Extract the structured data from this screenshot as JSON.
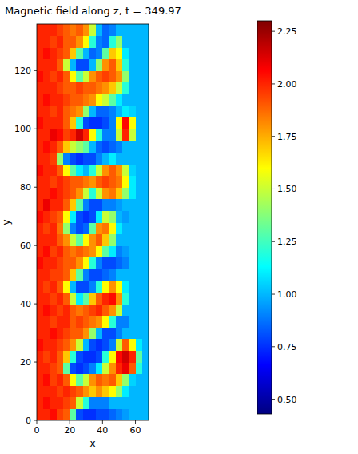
{
  "chart_data": {
    "type": "heatmap",
    "title": "Magnetic field along z, t = 349.97",
    "x_label": "x",
    "y_label": "y",
    "xlim": [
      0,
      68
    ],
    "ylim": [
      0,
      136
    ],
    "xticks": [
      0,
      20,
      40,
      60
    ],
    "yticks": [
      0,
      20,
      40,
      60,
      80,
      100,
      120
    ],
    "cells": [
      [
        2.0,
        2.0,
        2.05,
        1.95,
        1.9,
        1.3,
        0.8,
        0.75,
        0.75,
        0.8,
        0.8,
        0.85,
        0.9,
        0.95,
        1.0,
        1.0,
        1.0
      ],
      [
        2.0,
        2.05,
        2.0,
        2.0,
        1.95,
        1.9,
        1.5,
        1.2,
        0.9,
        0.9,
        0.9,
        1.0,
        1.0,
        1.0,
        1.0,
        1.0,
        1.0
      ],
      [
        2.0,
        2.0,
        2.0,
        1.95,
        2.0,
        1.95,
        1.9,
        1.8,
        1.7,
        1.8,
        1.7,
        1.6,
        1.4,
        1.1,
        1.0,
        1.0,
        1.0
      ],
      [
        2.0,
        2.05,
        1.95,
        2.0,
        1.9,
        1.6,
        1.3,
        1.5,
        1.8,
        1.9,
        1.85,
        1.9,
        1.7,
        1.4,
        1.05,
        1.0,
        1.0
      ],
      [
        2.0,
        2.0,
        1.95,
        1.9,
        1.3,
        0.8,
        0.75,
        0.8,
        0.9,
        1.1,
        1.5,
        1.8,
        2.0,
        2.1,
        1.9,
        1.2,
        1.0
      ],
      [
        2.0,
        1.95,
        2.0,
        1.9,
        1.7,
        1.2,
        0.8,
        0.75,
        0.75,
        0.8,
        1.2,
        1.6,
        2.05,
        2.15,
        2.0,
        1.3,
        1.0
      ],
      [
        2.05,
        2.0,
        2.0,
        1.95,
        1.9,
        1.8,
        1.5,
        1.0,
        0.8,
        0.75,
        0.8,
        0.9,
        1.5,
        1.9,
        1.6,
        1.1,
        1.0
      ],
      [
        2.0,
        2.0,
        2.05,
        2.0,
        1.95,
        1.9,
        1.9,
        1.8,
        1.4,
        1.0,
        0.8,
        0.8,
        0.9,
        1.0,
        1.0,
        1.0,
        1.0
      ],
      [
        2.0,
        2.0,
        1.95,
        2.0,
        2.0,
        1.9,
        1.95,
        1.9,
        1.85,
        1.8,
        1.6,
        1.2,
        0.9,
        0.9,
        1.0,
        1.0,
        1.0
      ],
      [
        2.0,
        2.05,
        2.0,
        1.95,
        2.0,
        1.9,
        1.85,
        1.9,
        1.95,
        2.0,
        1.9,
        1.8,
        1.5,
        1.0,
        1.0,
        1.0,
        1.0
      ],
      [
        2.0,
        2.0,
        1.95,
        2.0,
        1.9,
        1.5,
        1.1,
        1.3,
        1.7,
        1.9,
        2.0,
        2.05,
        1.8,
        1.2,
        1.0,
        1.0,
        1.0
      ],
      [
        2.0,
        1.95,
        2.0,
        1.9,
        1.6,
        1.0,
        0.8,
        0.8,
        0.9,
        1.2,
        1.6,
        1.8,
        1.6,
        1.1,
        1.0,
        1.0,
        1.0
      ],
      [
        2.0,
        2.0,
        1.95,
        1.95,
        1.9,
        1.7,
        1.3,
        0.9,
        0.8,
        0.8,
        0.85,
        0.9,
        1.0,
        1.0,
        1.0,
        1.0,
        1.0
      ],
      [
        2.05,
        2.0,
        2.0,
        1.95,
        1.9,
        1.9,
        1.8,
        1.6,
        1.2,
        0.9,
        0.8,
        0.8,
        0.85,
        0.9,
        1.0,
        1.0,
        1.0
      ],
      [
        2.0,
        2.05,
        1.95,
        2.0,
        1.9,
        1.85,
        1.9,
        1.85,
        1.8,
        1.6,
        1.3,
        1.1,
        0.9,
        0.95,
        1.0,
        1.0,
        1.0
      ],
      [
        2.0,
        2.0,
        2.0,
        1.9,
        1.8,
        1.5,
        1.3,
        1.6,
        1.8,
        1.9,
        1.7,
        1.4,
        1.0,
        1.0,
        1.0,
        1.0,
        1.0
      ],
      [
        2.0,
        1.95,
        2.0,
        1.85,
        1.4,
        0.9,
        0.8,
        0.85,
        1.3,
        1.8,
        1.85,
        1.6,
        1.1,
        1.0,
        1.0,
        1.0,
        1.0
      ],
      [
        2.05,
        2.0,
        1.95,
        1.9,
        1.6,
        1.1,
        0.8,
        0.75,
        0.8,
        1.1,
        1.5,
        1.4,
        1.0,
        0.95,
        1.0,
        1.0,
        1.0
      ],
      [
        2.0,
        2.1,
        2.0,
        2.0,
        1.9,
        1.7,
        1.3,
        0.9,
        0.8,
        0.8,
        0.9,
        0.9,
        0.95,
        1.0,
        1.0,
        1.0,
        1.0
      ],
      [
        2.0,
        2.0,
        2.05,
        2.0,
        1.95,
        1.9,
        1.8,
        1.5,
        1.2,
        1.5,
        1.8,
        1.85,
        1.7,
        1.4,
        1.1,
        1.0,
        1.0
      ],
      [
        2.0,
        2.0,
        1.95,
        2.0,
        1.95,
        1.9,
        1.9,
        1.85,
        1.8,
        1.9,
        1.95,
        1.9,
        1.85,
        1.6,
        1.1,
        1.0,
        1.0
      ],
      [
        2.05,
        2.0,
        2.0,
        1.9,
        1.6,
        1.3,
        1.1,
        1.0,
        1.2,
        1.5,
        1.8,
        1.9,
        1.8,
        1.5,
        1.05,
        1.0,
        1.0
      ],
      [
        2.0,
        2.0,
        1.95,
        1.4,
        0.9,
        0.8,
        0.75,
        0.8,
        0.8,
        0.9,
        1.0,
        1.1,
        1.0,
        1.0,
        1.0,
        1.0,
        1.0
      ],
      [
        2.0,
        2.05,
        2.0,
        1.9,
        1.7,
        1.5,
        1.4,
        1.3,
        1.0,
        0.85,
        0.8,
        0.85,
        0.9,
        1.0,
        1.0,
        1.0,
        1.0
      ],
      [
        2.0,
        2.0,
        2.1,
        2.05,
        1.95,
        2.0,
        2.15,
        2.0,
        1.6,
        1.2,
        0.9,
        0.9,
        1.5,
        2.0,
        1.5,
        1.0,
        1.0
      ],
      [
        2.05,
        2.0,
        2.0,
        2.0,
        1.9,
        1.7,
        1.2,
        0.8,
        0.75,
        0.75,
        0.8,
        0.9,
        1.6,
        2.05,
        1.6,
        1.0,
        1.0
      ],
      [
        2.0,
        2.0,
        1.95,
        2.0,
        1.9,
        1.85,
        1.8,
        1.4,
        1.0,
        0.85,
        0.85,
        0.9,
        1.0,
        1.1,
        1.05,
        1.0,
        1.0
      ],
      [
        2.0,
        2.05,
        2.0,
        2.0,
        1.95,
        1.9,
        1.9,
        1.85,
        1.8,
        1.6,
        1.5,
        1.3,
        1.1,
        1.0,
        1.0,
        1.0,
        1.0
      ],
      [
        2.0,
        2.0,
        2.0,
        1.95,
        1.9,
        1.9,
        1.95,
        1.9,
        1.9,
        1.85,
        1.8,
        1.7,
        1.5,
        1.2,
        1.0,
        1.0,
        1.0
      ],
      [
        2.05,
        2.0,
        1.95,
        2.0,
        1.9,
        1.6,
        1.3,
        1.5,
        1.8,
        1.9,
        1.95,
        1.9,
        1.8,
        1.4,
        1.0,
        1.0,
        1.0
      ],
      [
        2.0,
        2.0,
        2.0,
        1.9,
        1.5,
        1.0,
        0.8,
        0.8,
        1.0,
        1.4,
        1.8,
        1.9,
        1.7,
        1.2,
        1.0,
        1.0,
        1.0
      ],
      [
        2.0,
        2.05,
        2.0,
        1.95,
        1.9,
        1.7,
        1.3,
        1.0,
        0.85,
        0.9,
        1.3,
        1.7,
        1.6,
        1.1,
        1.0,
        1.0,
        1.0
      ],
      [
        2.0,
        2.0,
        1.95,
        2.0,
        1.9,
        1.9,
        1.8,
        1.6,
        1.2,
        0.9,
        0.85,
        1.2,
        1.4,
        1.0,
        1.0,
        1.0,
        1.0
      ],
      [
        2.0,
        2.0,
        2.0,
        1.95,
        1.9,
        1.85,
        1.9,
        1.8,
        1.5,
        1.0,
        0.85,
        0.9,
        1.0,
        1.0,
        1.0,
        1.0,
        1.0
      ]
    ],
    "colorbar_range": [
      0.43,
      2.3
    ],
    "colorbar_ticks": [
      {
        "value": 0.5,
        "label": "0.50"
      },
      {
        "value": 0.75,
        "label": "0.75"
      },
      {
        "value": 1.0,
        "label": "1.00"
      },
      {
        "value": 1.25,
        "label": "1.25"
      },
      {
        "value": 1.5,
        "label": "1.50"
      },
      {
        "value": 1.75,
        "label": "1.75"
      },
      {
        "value": 2.0,
        "label": "2.00"
      },
      {
        "value": 2.25,
        "label": "2.25"
      }
    ]
  }
}
